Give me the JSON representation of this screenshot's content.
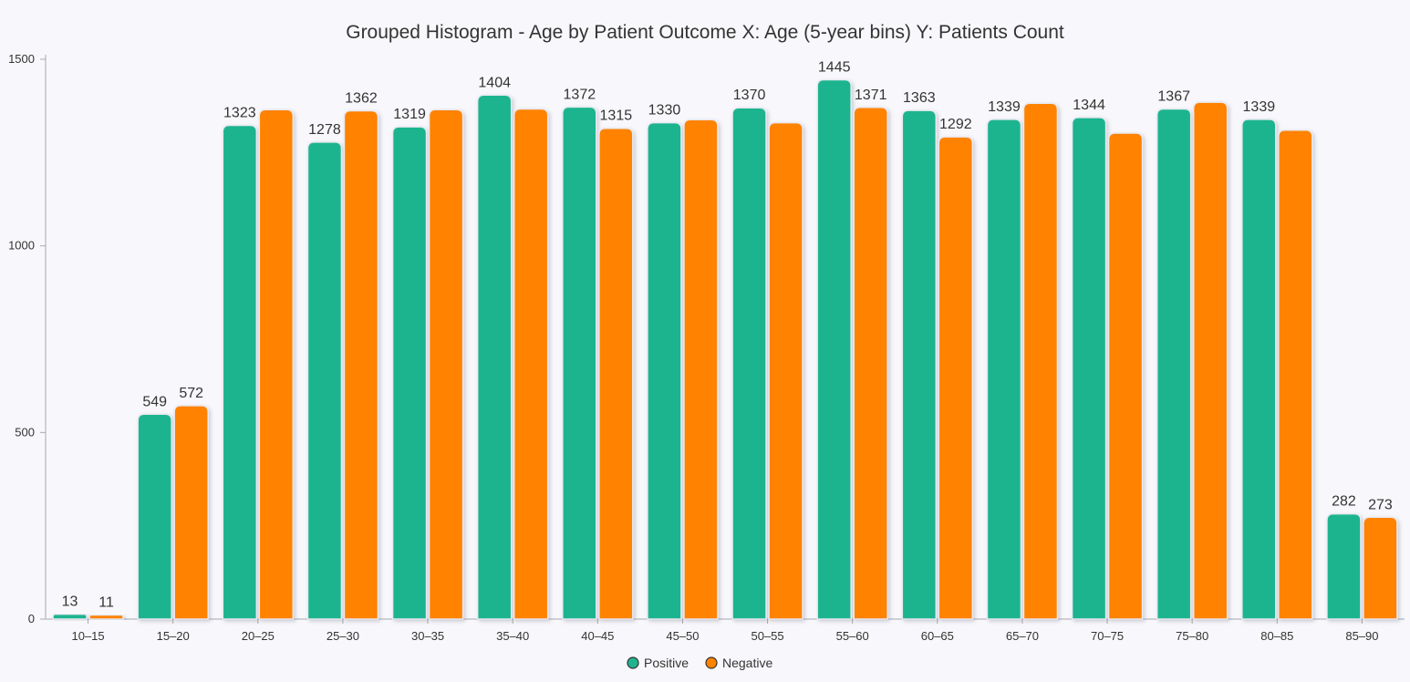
{
  "chart_data": {
    "type": "bar",
    "title": "Grouped Histogram - Age by Patient Outcome X: Age (5-year bins) Y: Patients Count",
    "xlabel": "",
    "ylabel": "",
    "categories": [
      "10–15",
      "15–20",
      "20–25",
      "25–30",
      "30–35",
      "35–40",
      "40–45",
      "45–50",
      "50–55",
      "55–60",
      "60–65",
      "65–70",
      "70–75",
      "75–80",
      "80–85",
      "85–90"
    ],
    "series": [
      {
        "name": "Positive",
        "color": "#1fb48e",
        "values": [
          13,
          549,
          1323,
          1278,
          1319,
          1404,
          1372,
          1330,
          1370,
          1445,
          1363,
          1339,
          1344,
          1367,
          1339,
          282
        ],
        "labels_shown": [
          true,
          true,
          true,
          true,
          true,
          true,
          true,
          true,
          true,
          true,
          true,
          true,
          true,
          true,
          true,
          true
        ]
      },
      {
        "name": "Negative",
        "color": "#ff8200",
        "values": [
          11,
          572,
          1365,
          1362,
          1365,
          1367,
          1315,
          1338,
          1330,
          1371,
          1292,
          1382,
          1302,
          1385,
          1310,
          273
        ],
        "labels_shown": [
          true,
          true,
          false,
          true,
          false,
          false,
          true,
          false,
          false,
          true,
          true,
          false,
          false,
          false,
          false,
          true
        ]
      }
    ],
    "ylim": [
      0,
      1500
    ],
    "yticks": [
      0,
      500,
      1000,
      1500
    ],
    "grid": false,
    "legend_position": "bottom-center"
  }
}
